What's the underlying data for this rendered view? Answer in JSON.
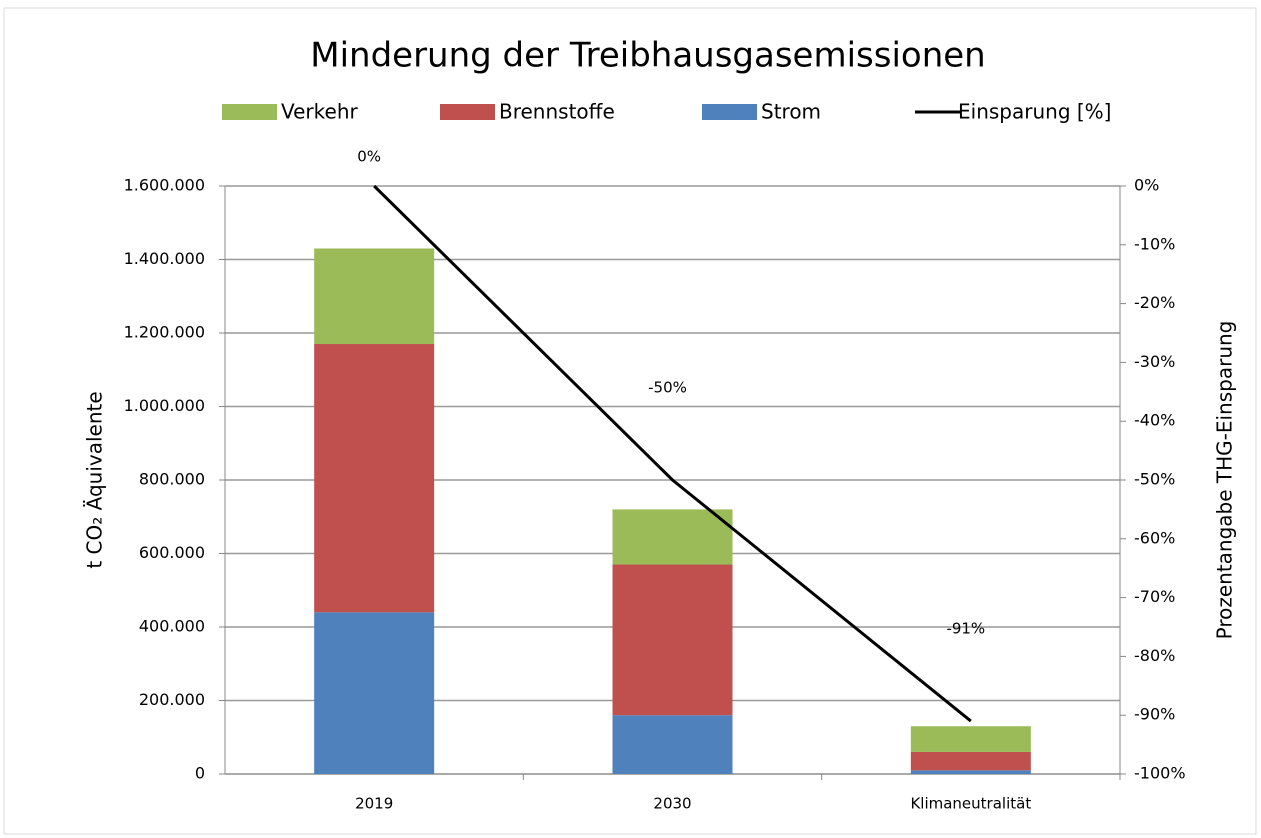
{
  "chart_data": {
    "type": "bar_line",
    "title": "Minderung der Treibhausgasemissionen",
    "y_label": "t CO₂ Äquivalente",
    "y2_label": "Prozentangabe THG-Einsparung",
    "categories": [
      "2019",
      "2030",
      "Klimaneutralität"
    ],
    "series": [
      {
        "name": "Strom",
        "color": "#4f81bd",
        "values": [
          440000,
          160000,
          10000
        ]
      },
      {
        "name": "Brennstoffe",
        "color": "#c0504d",
        "values": [
          730000,
          410000,
          50000
        ]
      },
      {
        "name": "Verkehr",
        "color": "#9bbb59",
        "values": [
          260000,
          150000,
          70000
        ]
      },
      {
        "name": "Einsparung [%]",
        "color": "#000000",
        "axis": "y2",
        "type": "line",
        "values": [
          0,
          -50,
          -91
        ],
        "value_labels": [
          "0%",
          "-50%",
          "-91%"
        ]
      }
    ],
    "ylim": [
      0,
      1600000
    ],
    "yticks": [
      0,
      {
        "value": 200000,
        "label": "200.000"
      },
      {
        "value": 400000,
        "label": "400.000"
      },
      {
        "value": 600000,
        "label": "600.000"
      },
      {
        "value": 800000,
        "label": "800.000"
      },
      {
        "value": 1000000,
        "label": "1.000.000"
      },
      {
        "value": 1200000,
        "label": "1.200.000"
      },
      {
        "value": 1400000,
        "label": "1.400.000"
      },
      {
        "value": 1600000,
        "label": "1.600.000"
      }
    ],
    "y2lim": [
      -100,
      0
    ],
    "y2ticks": [
      {
        "value": 0,
        "label": "0%"
      },
      {
        "value": -10,
        "label": "-10%"
      },
      {
        "value": -20,
        "label": "-20%"
      },
      {
        "value": -30,
        "label": "-30%"
      },
      {
        "value": -40,
        "label": "-40%"
      },
      {
        "value": -50,
        "label": "-50%"
      },
      {
        "value": -60,
        "label": "-60%"
      },
      {
        "value": -70,
        "label": "-70%"
      },
      {
        "value": -80,
        "label": "-80%"
      },
      {
        "value": -90,
        "label": "-90%"
      },
      {
        "value": -100,
        "label": "-100%"
      }
    ],
    "grid": true
  }
}
